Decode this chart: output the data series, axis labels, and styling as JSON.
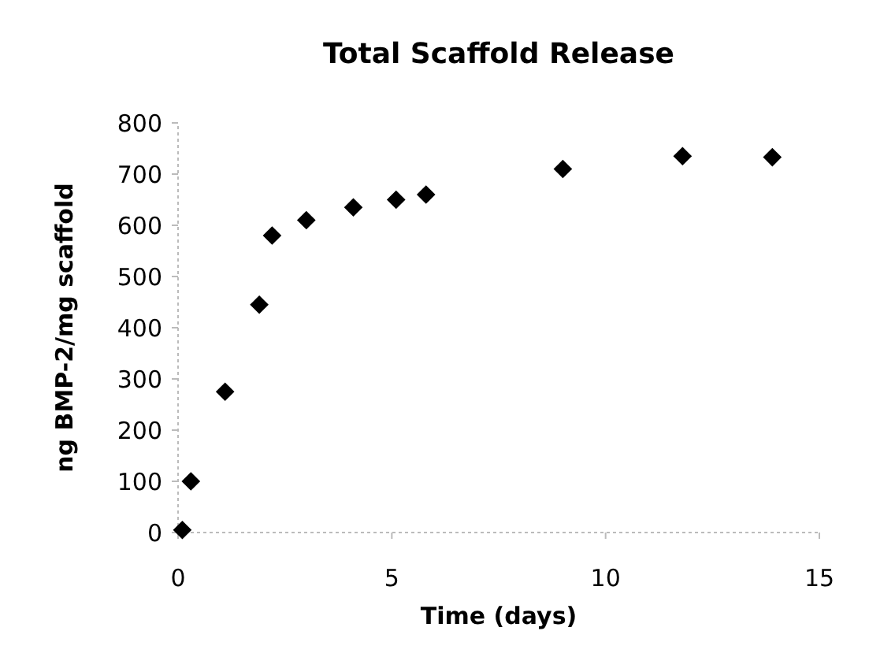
{
  "chart_data": {
    "type": "scatter",
    "title": "Total Scaffold Release",
    "xlabel": "Time (days)",
    "ylabel": "ng BMP-2/mg scaffold",
    "x": [
      0.1,
      0.3,
      1.1,
      1.9,
      2.2,
      3,
      4.1,
      5.1,
      5.8,
      9,
      11.8,
      13.9
    ],
    "series": [
      {
        "color": "#000000",
        "values": [
          5,
          100,
          275,
          445,
          580,
          610,
          635,
          650,
          660,
          710,
          735,
          733
        ]
      }
    ],
    "xlim": [
      0,
      15
    ],
    "xticks": [
      0,
      5,
      10,
      15
    ],
    "ylim": [
      0,
      800
    ],
    "yticks": [
      0,
      100,
      200,
      300,
      400,
      500,
      600,
      700,
      800
    ],
    "marker": "diamond",
    "grid": false
  }
}
